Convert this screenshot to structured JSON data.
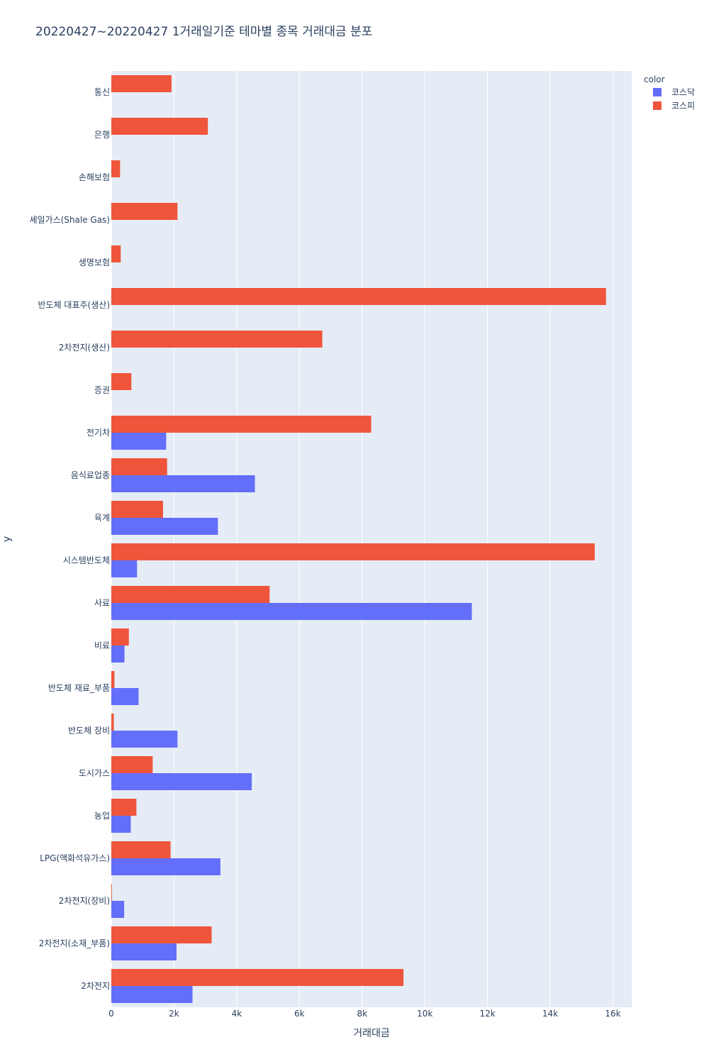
{
  "chart_data": {
    "type": "bar",
    "orientation": "horizontal",
    "barmode": "group",
    "title": "20220427~20220427 1거래일기준 테마별 종목 거래대금 분포",
    "xlabel": "거래대금",
    "ylabel": "y",
    "xlim": [
      0,
      16600
    ],
    "x_ticks": [
      0,
      2000,
      4000,
      6000,
      8000,
      10000,
      12000,
      14000,
      16000
    ],
    "x_tick_labels": [
      "0",
      "2k",
      "4k",
      "6k",
      "8k",
      "10k",
      "12k",
      "14k",
      "16k"
    ],
    "legend": {
      "title": "color",
      "position": "top-right"
    },
    "categories": [
      "통신",
      "은행",
      "손해보험",
      "셰일가스(Shale Gas)",
      "생명보험",
      "반도체 대표주(생산)",
      "2차전지(생산)",
      "증권",
      "전기차",
      "음식료업종",
      "육계",
      "시스템반도체",
      "사료",
      "비료",
      "반도체 재료_부품",
      "반도체 장비",
      "도시가스",
      "농업",
      "LPG(액화석유가스)",
      "2차전지(장비)",
      "2차전지(소재_부품)",
      "2차전지"
    ],
    "series": [
      {
        "name": "코스닥",
        "color": "#636efa",
        "values": [
          0,
          0,
          0,
          0,
          0,
          0,
          0,
          0,
          1750,
          4580,
          3400,
          820,
          11500,
          420,
          870,
          2110,
          4480,
          620,
          3480,
          410,
          2080,
          2590
        ]
      },
      {
        "name": "코스피",
        "color": "#ef553b",
        "values": [
          1920,
          3080,
          280,
          2110,
          300,
          15780,
          6730,
          640,
          8290,
          1780,
          1650,
          15420,
          5050,
          560,
          100,
          80,
          1320,
          800,
          1890,
          20,
          3200,
          9320
        ]
      }
    ]
  }
}
